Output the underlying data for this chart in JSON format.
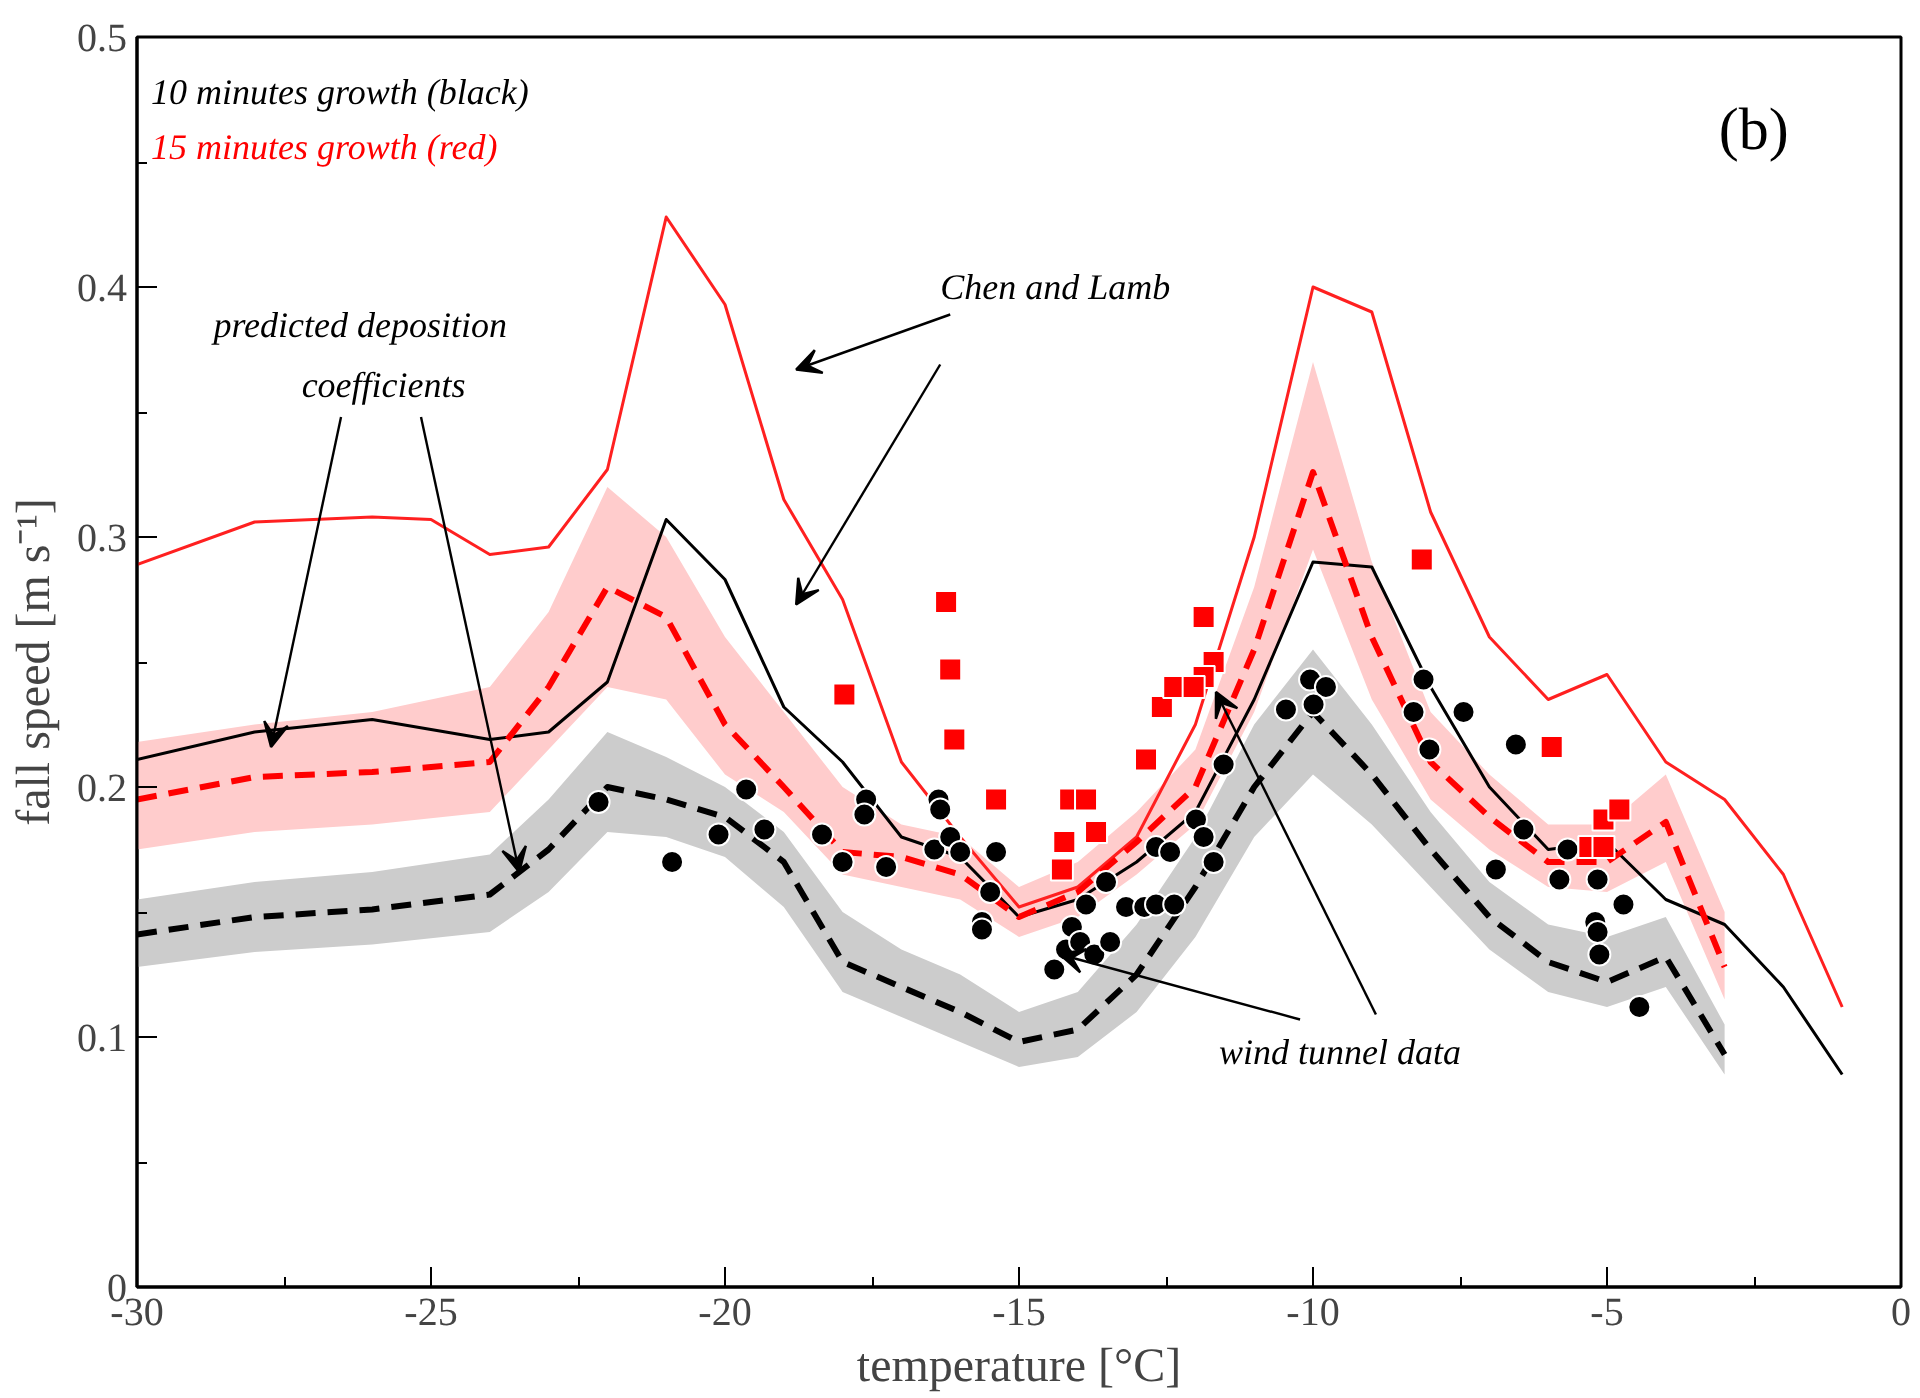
{
  "chart_data": {
    "type": "line",
    "xlabel": "temperature [°C]",
    "ylabel": "fall speed [m s⁻¹]",
    "xlim": [
      -30,
      0
    ],
    "ylim": [
      0,
      0.5
    ],
    "xticks": [
      -30,
      -25,
      -20,
      -15,
      -10,
      -5,
      0
    ],
    "yticks": [
      0,
      0.1,
      0.2,
      0.3,
      0.4,
      0.5
    ],
    "grid": false,
    "annotations": [
      "10 minutes growth (black)",
      "15 minutes growth (red)",
      "(b)",
      "Chen and Lamb",
      {
        "text": "predicted deposition coefficients",
        "x": -23.5,
        "y": 0.166
      },
      {
        "text": "wind tunnel data",
        "x": -14.3,
        "y": 0.133
      }
    ],
    "series": [
      {
        "color": "#ff2020",
        "line_style": "solid",
        "x": [
          -30,
          -28,
          -26,
          -25,
          -24,
          -23,
          -22,
          -21,
          -20,
          -19,
          -18,
          -17,
          -16,
          -15,
          -14,
          -13,
          -12,
          -11,
          -10,
          -9,
          -8,
          -7,
          -6,
          -5,
          -4,
          -3,
          -2,
          -1
        ],
        "values": [
          0.289,
          0.306,
          0.308,
          0.307,
          0.293,
          0.296,
          0.327,
          0.428,
          0.393,
          0.315,
          0.275,
          0.21,
          0.18,
          0.152,
          0.16,
          0.18,
          0.225,
          0.3,
          0.4,
          0.39,
          0.31,
          0.26,
          0.235,
          0.245,
          0.21,
          0.195,
          0.165,
          0.112
        ]
      },
      {
        "color": "#000000",
        "line_style": "solid",
        "x": [
          -30,
          -28,
          -26,
          -24,
          -23,
          -22,
          -21,
          -20,
          -19,
          -18,
          -17,
          -16,
          -15,
          -14,
          -13,
          -12,
          -11,
          -10,
          -9,
          -8,
          -7,
          -6,
          -5,
          -4,
          -3,
          -2,
          -1
        ],
        "values": [
          0.211,
          0.222,
          0.227,
          0.219,
          0.222,
          0.242,
          0.307,
          0.283,
          0.232,
          0.21,
          0.18,
          0.172,
          0.148,
          0.155,
          0.17,
          0.19,
          0.235,
          0.29,
          0.288,
          0.24,
          0.2,
          0.175,
          0.178,
          0.155,
          0.145,
          0.12,
          0.085
        ]
      },
      {
        "color": "#ff0000",
        "line_style": "dashed",
        "x": [
          -30,
          -28,
          -26,
          -24,
          -23,
          -22,
          -21,
          -20,
          -19,
          -18,
          -17,
          -16,
          -15,
          -14,
          -13,
          -12,
          -11,
          -10,
          -9,
          -8,
          -7,
          -6,
          -5,
          -4,
          -3
        ],
        "values": [
          0.195,
          0.204,
          0.206,
          0.21,
          0.24,
          0.28,
          0.268,
          0.225,
          0.2,
          0.174,
          0.172,
          0.165,
          0.148,
          0.158,
          0.178,
          0.2,
          0.255,
          0.326,
          0.26,
          0.21,
          0.188,
          0.17,
          0.17,
          0.186,
          0.128
        ],
        "upper": [
          0.218,
          0.225,
          0.23,
          0.24,
          0.27,
          0.32,
          0.3,
          0.26,
          0.23,
          0.2,
          0.185,
          0.18,
          0.16,
          0.17,
          0.19,
          0.215,
          0.28,
          0.37,
          0.29,
          0.23,
          0.205,
          0.185,
          0.185,
          0.205,
          0.15
        ],
        "lower": [
          0.175,
          0.182,
          0.185,
          0.19,
          0.215,
          0.24,
          0.235,
          0.205,
          0.19,
          0.165,
          0.16,
          0.155,
          0.14,
          0.148,
          0.165,
          0.185,
          0.23,
          0.295,
          0.235,
          0.195,
          0.175,
          0.16,
          0.158,
          0.17,
          0.115
        ]
      },
      {
        "color": "#000000",
        "line_style": "dashed",
        "x": [
          -30,
          -28,
          -26,
          -24,
          -23,
          -22,
          -21,
          -20,
          -19,
          -18,
          -17,
          -16,
          -15,
          -14,
          -13,
          -12,
          -11,
          -10,
          -9,
          -8,
          -7,
          -6,
          -5,
          -4,
          -3
        ],
        "values": [
          0.141,
          0.148,
          0.151,
          0.157,
          0.175,
          0.2,
          0.195,
          0.188,
          0.17,
          0.13,
          0.12,
          0.11,
          0.098,
          0.103,
          0.125,
          0.16,
          0.2,
          0.23,
          0.205,
          0.175,
          0.148,
          0.13,
          0.122,
          0.132,
          0.093
        ],
        "upper": [
          0.155,
          0.162,
          0.166,
          0.173,
          0.195,
          0.222,
          0.212,
          0.2,
          0.182,
          0.15,
          0.135,
          0.125,
          0.11,
          0.118,
          0.145,
          0.18,
          0.225,
          0.255,
          0.225,
          0.19,
          0.162,
          0.145,
          0.14,
          0.148,
          0.105
        ],
        "lower": [
          0.128,
          0.134,
          0.137,
          0.142,
          0.158,
          0.182,
          0.18,
          0.172,
          0.152,
          0.118,
          0.108,
          0.098,
          0.088,
          0.092,
          0.11,
          0.14,
          0.18,
          0.205,
          0.185,
          0.16,
          0.135,
          0.118,
          0.112,
          0.12,
          0.085
        ]
      },
      {
        "type": "scatter",
        "marker": "circle",
        "color": "#000000",
        "x": [
          -22.15,
          -20.9,
          -19.64,
          -20.11,
          -19.33,
          -18.35,
          -18.0,
          -17.6,
          -17.63,
          -17.26,
          -16.37,
          -16.34,
          -16.44,
          -16.17,
          -16.0,
          -15.39,
          -15.49,
          -15.63,
          -15.63,
          -13.86,
          -14.1,
          -14.2,
          -13.96,
          -13.72,
          -13.45,
          -14.4,
          -13.52,
          -13.18,
          -12.87,
          -12.67,
          -12.36,
          -12.67,
          -12.43,
          -11.99,
          -11.86,
          -11.69,
          -11.52,
          -10.46,
          -10.05,
          -9.78,
          -9.99,
          -8.12,
          -8.29,
          -8.02,
          -7.44,
          -6.55,
          -6.42,
          -6.89,
          -5.67,
          -5.81,
          -5.16,
          -4.72,
          -5.2,
          -5.16,
          -5.13,
          -4.45
        ],
        "values": [
          0.194,
          0.17,
          0.199,
          0.181,
          0.183,
          0.181,
          0.17,
          0.195,
          0.189,
          0.168,
          0.195,
          0.191,
          0.175,
          0.18,
          0.174,
          0.174,
          0.158,
          0.146,
          0.143,
          0.153,
          0.144,
          0.135,
          0.138,
          0.133,
          0.138,
          0.127,
          0.162,
          0.152,
          0.152,
          0.153,
          0.153,
          0.176,
          0.174,
          0.187,
          0.18,
          0.17,
          0.209,
          0.231,
          0.243,
          0.24,
          0.233,
          0.243,
          0.23,
          0.215,
          0.23,
          0.217,
          0.183,
          0.167,
          0.175,
          0.163,
          0.163,
          0.153,
          0.146,
          0.142,
          0.133,
          0.112
        ]
      },
      {
        "type": "scatter",
        "marker": "square",
        "color": "#ff0000",
        "x": [
          -16.24,
          -16.17,
          -16.1,
          -17.97,
          -15.39,
          -14.13,
          -13.86,
          -14.23,
          -14.27,
          -13.69,
          -12.84,
          -12.57,
          -12.36,
          -11.86,
          -11.69,
          -11.86,
          -12.03,
          -8.15,
          -5.94,
          -5.06,
          -4.79,
          -5.3,
          -5.06
        ],
        "values": [
          0.274,
          0.247,
          0.219,
          0.237,
          0.195,
          0.195,
          0.195,
          0.178,
          0.167,
          0.182,
          0.211,
          0.232,
          0.24,
          0.268,
          0.25,
          0.244,
          0.24,
          0.291,
          0.216,
          0.187,
          0.191,
          0.176,
          0.176
        ]
      }
    ]
  }
}
